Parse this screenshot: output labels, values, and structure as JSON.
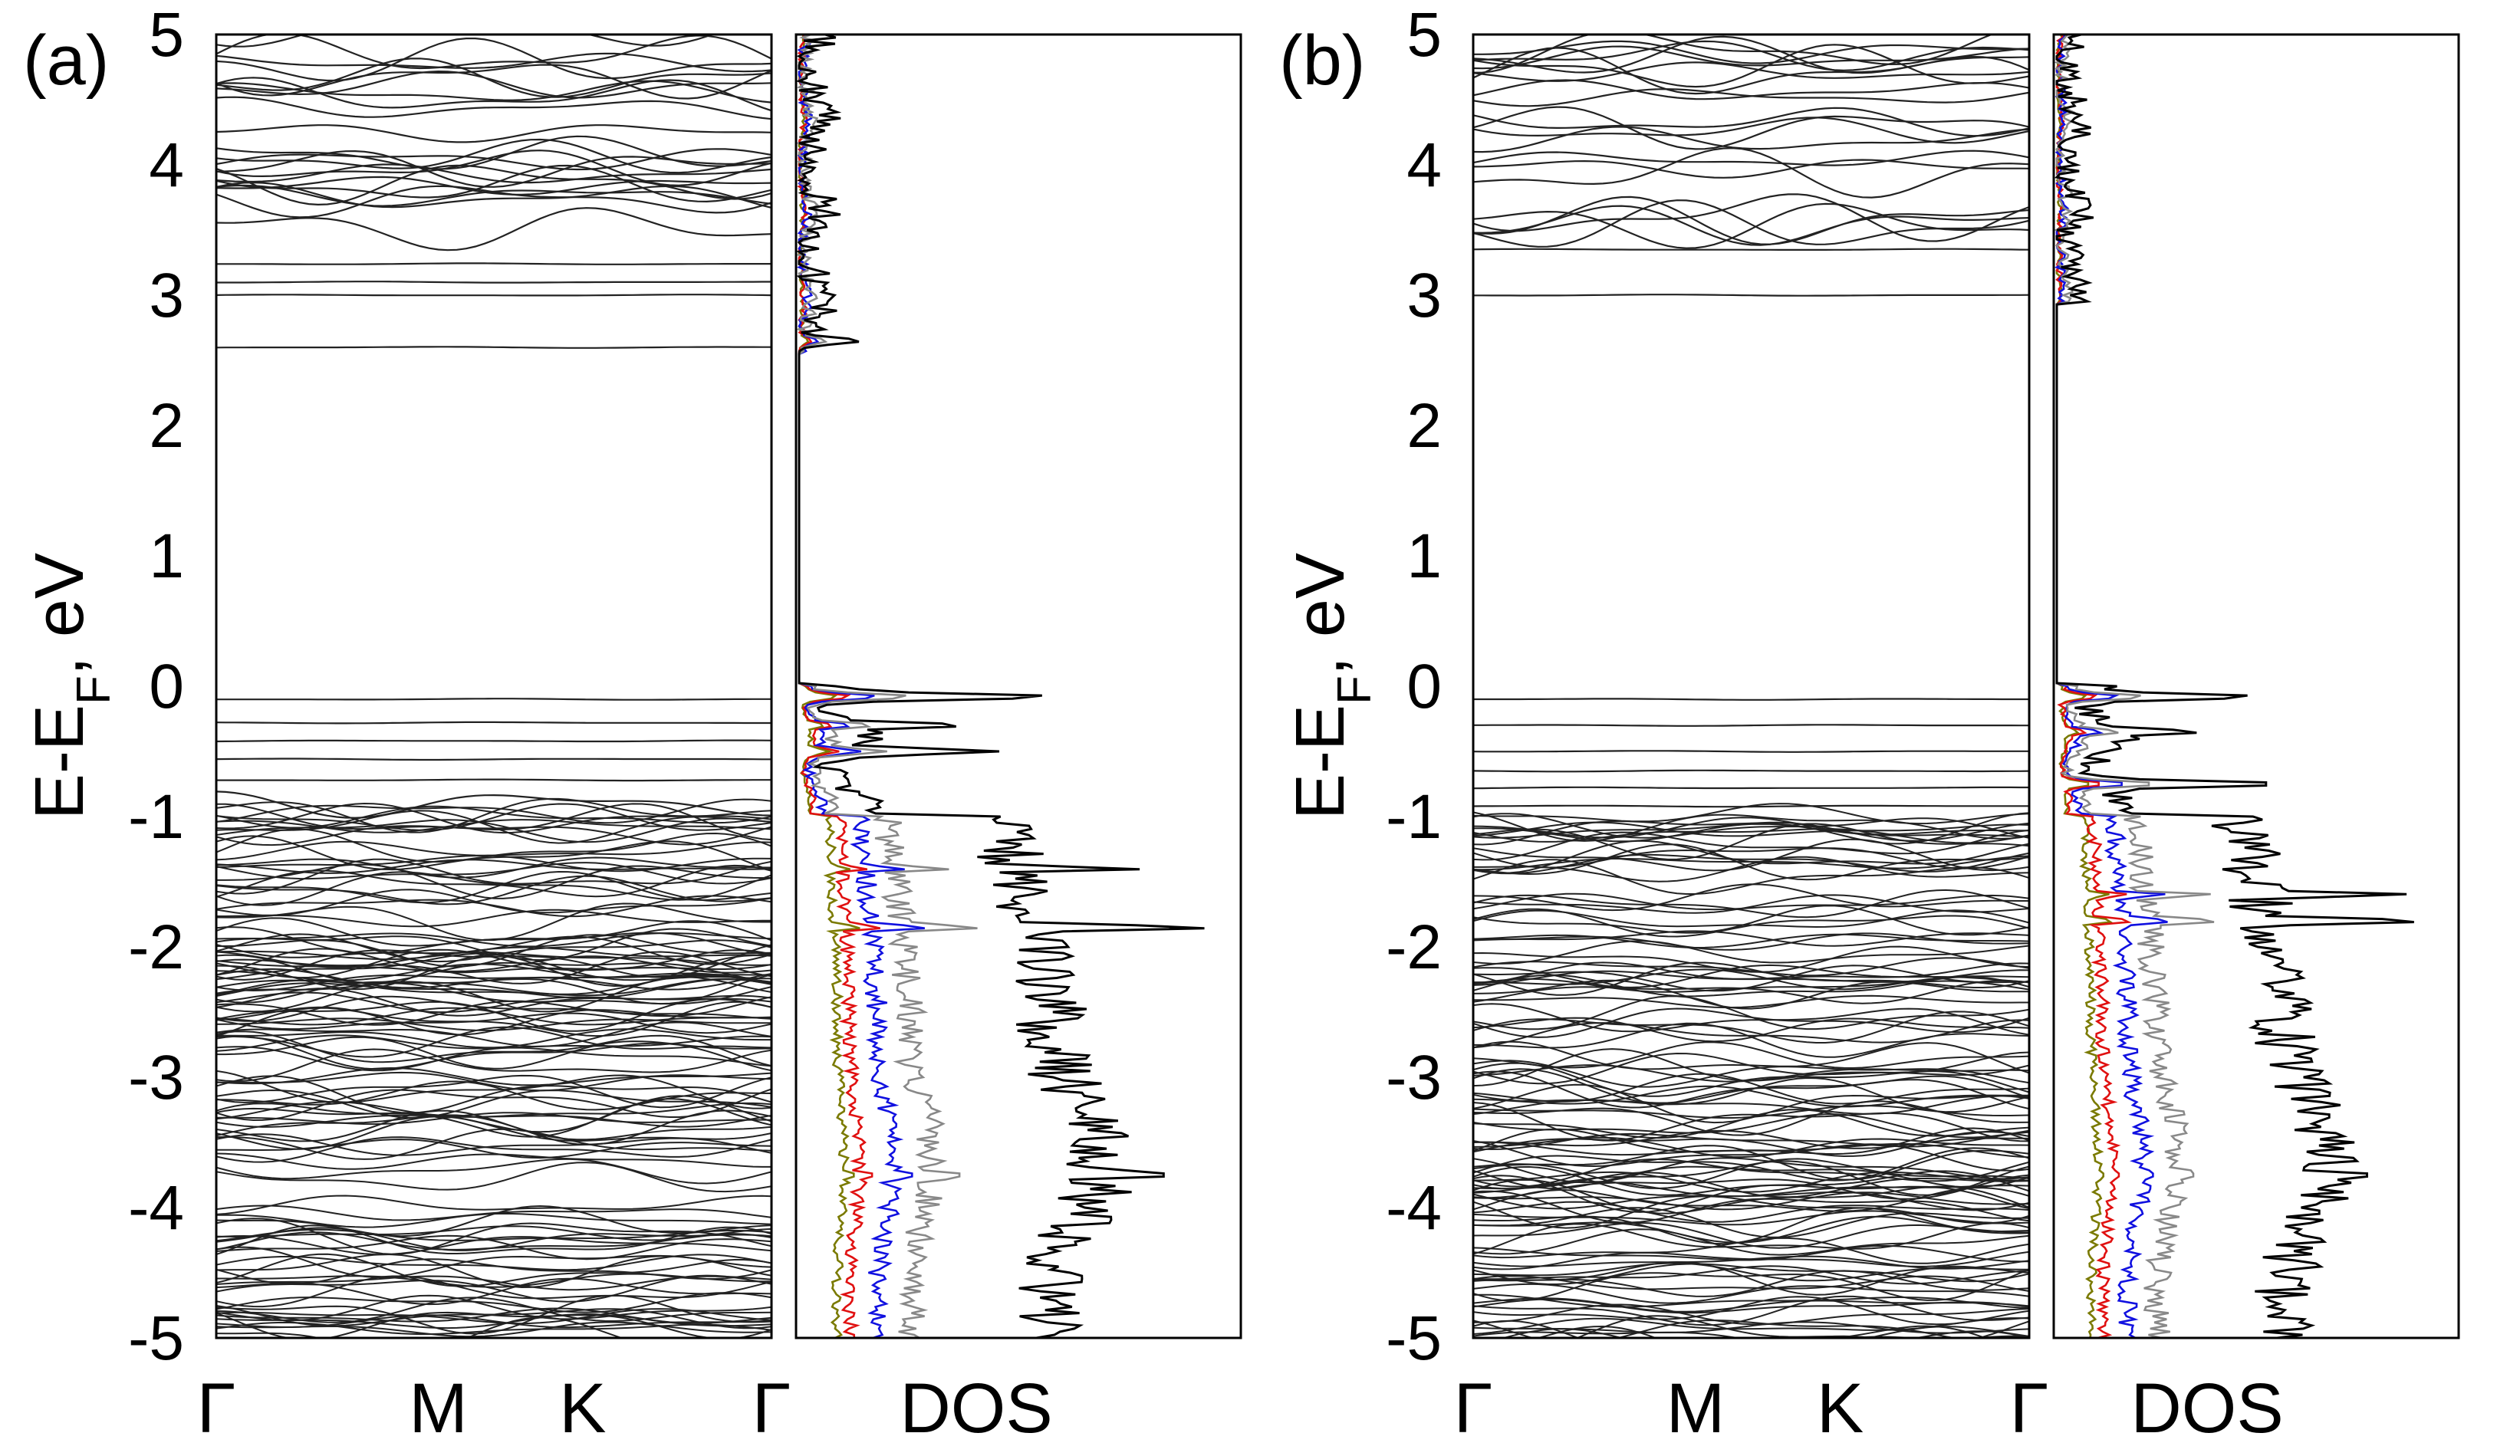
{
  "chart_data": [
    {
      "type": "line",
      "panel_label": "(a)",
      "ylabel": "E-E",
      "ylabel_subscript": "F",
      "ylabel_suffix": ", eV",
      "ylim": [
        -5,
        5
      ],
      "yticks": [
        "5",
        "4",
        "3",
        "2",
        "1",
        "0",
        "-1",
        "-2",
        "-3",
        "-4",
        "-5"
      ],
      "band_structure": {
        "kpoint_labels": [
          "Γ",
          "M",
          "K",
          "Γ"
        ],
        "flat_levels": [
          2.6,
          3.0,
          3.1,
          3.24,
          -0.1,
          -0.28,
          -0.42,
          -0.56,
          -0.72
        ],
        "dispersive_levels": [
          -0.9
        ],
        "bands_above_3_5eV": 24,
        "bands_below_minus1eV": 130
      },
      "dos": {
        "xlabel": "DOS",
        "series": [
          {
            "name": "total",
            "color": "#000000"
          },
          {
            "name": "partial-gray",
            "color": "#888888"
          },
          {
            "name": "partial-blue",
            "color": "#1010e0"
          },
          {
            "name": "partial-red",
            "color": "#e01010"
          },
          {
            "name": "partial-olive",
            "color": "#7a7a00"
          }
        ],
        "peaks": [
          {
            "energy": -0.08,
            "total": 0.58
          },
          {
            "energy": -0.3,
            "total": 0.38
          },
          {
            "energy": -0.5,
            "total": 0.45
          },
          {
            "energy": -1.4,
            "total": 0.78
          },
          {
            "energy": -1.85,
            "total": 0.95
          },
          {
            "energy": -3.75,
            "total": 0.92
          },
          {
            "energy": 2.65,
            "total": 0.14
          }
        ]
      }
    },
    {
      "type": "line",
      "panel_label": "(b)",
      "ylabel": "E-E",
      "ylabel_subscript": "F",
      "ylabel_suffix": ", eV",
      "ylim": [
        -5,
        5
      ],
      "yticks": [
        "5",
        "4",
        "3",
        "2",
        "1",
        "0",
        "-1",
        "-2",
        "-3",
        "-4",
        "-5"
      ],
      "band_structure": {
        "kpoint_labels": [
          "Γ",
          "M",
          "K",
          "Γ"
        ],
        "flat_levels": [
          3.0,
          3.35,
          -0.1,
          -0.3,
          -0.5,
          -0.65,
          -0.78,
          -0.92
        ],
        "dispersive_levels": [],
        "bands_above_3_5eV": 22,
        "bands_below_minus1eV": 130
      },
      "dos": {
        "xlabel": "DOS",
        "series": [
          {
            "name": "total",
            "color": "#000000"
          },
          {
            "name": "partial-gray",
            "color": "#888888"
          },
          {
            "name": "partial-blue",
            "color": "#1010e0"
          },
          {
            "name": "partial-red",
            "color": "#e01010"
          },
          {
            "name": "partial-olive",
            "color": "#7a7a00"
          }
        ],
        "peaks": [
          {
            "energy": -0.08,
            "total": 0.5
          },
          {
            "energy": -0.35,
            "total": 0.36
          },
          {
            "energy": -0.75,
            "total": 0.58
          },
          {
            "energy": -1.6,
            "total": 0.88
          },
          {
            "energy": -1.8,
            "total": 0.95
          },
          {
            "energy": -3.75,
            "total": 0.86
          },
          {
            "energy": 3.3,
            "total": 0.07
          }
        ]
      }
    }
  ]
}
